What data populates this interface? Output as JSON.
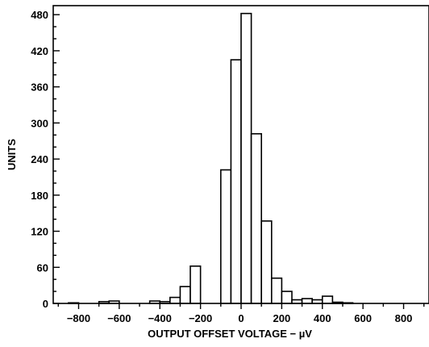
{
  "chart_data": {
    "type": "bar",
    "xlabel": "OUTPUT OFFSET VOLTAGE − µV",
    "ylabel": "UNITS",
    "xlim": [
      -925,
      925
    ],
    "ylim": [
      0,
      495
    ],
    "grid": false,
    "bin_width": 50,
    "x_ticks": [
      -800,
      -600,
      -400,
      -200,
      0,
      200,
      400,
      600,
      800
    ],
    "x_tick_labels": [
      "−800",
      "−600",
      "−400",
      "−200",
      "0",
      "200",
      "400",
      "600",
      "800"
    ],
    "y_ticks": [
      0,
      60,
      120,
      180,
      240,
      300,
      360,
      420,
      480
    ],
    "y_tick_labels": [
      "0",
      "60",
      "120",
      "180",
      "240",
      "300",
      "360",
      "420",
      "480"
    ],
    "bins": [
      {
        "x0": -850,
        "x1": -800,
        "value": 1
      },
      {
        "x0": -700,
        "x1": -650,
        "value": 3
      },
      {
        "x0": -650,
        "x1": -600,
        "value": 4
      },
      {
        "x0": -450,
        "x1": -400,
        "value": 4
      },
      {
        "x0": -400,
        "x1": -350,
        "value": 3
      },
      {
        "x0": -350,
        "x1": -300,
        "value": 10
      },
      {
        "x0": -300,
        "x1": -250,
        "value": 28
      },
      {
        "x0": -250,
        "x1": -200,
        "value": 62
      },
      {
        "x0": -100,
        "x1": -50,
        "value": 222
      },
      {
        "x0": -50,
        "x1": 0,
        "value": 405
      },
      {
        "x0": 0,
        "x1": 50,
        "value": 482
      },
      {
        "x0": 50,
        "x1": 100,
        "value": 282
      },
      {
        "x0": 100,
        "x1": 150,
        "value": 137
      },
      {
        "x0": 150,
        "x1": 200,
        "value": 42
      },
      {
        "x0": 200,
        "x1": 250,
        "value": 20
      },
      {
        "x0": 250,
        "x1": 300,
        "value": 6
      },
      {
        "x0": 300,
        "x1": 350,
        "value": 8
      },
      {
        "x0": 350,
        "x1": 400,
        "value": 6
      },
      {
        "x0": 400,
        "x1": 450,
        "value": 12
      },
      {
        "x0": 450,
        "x1": 500,
        "value": 2
      },
      {
        "x0": 500,
        "x1": 550,
        "value": 1
      }
    ]
  }
}
